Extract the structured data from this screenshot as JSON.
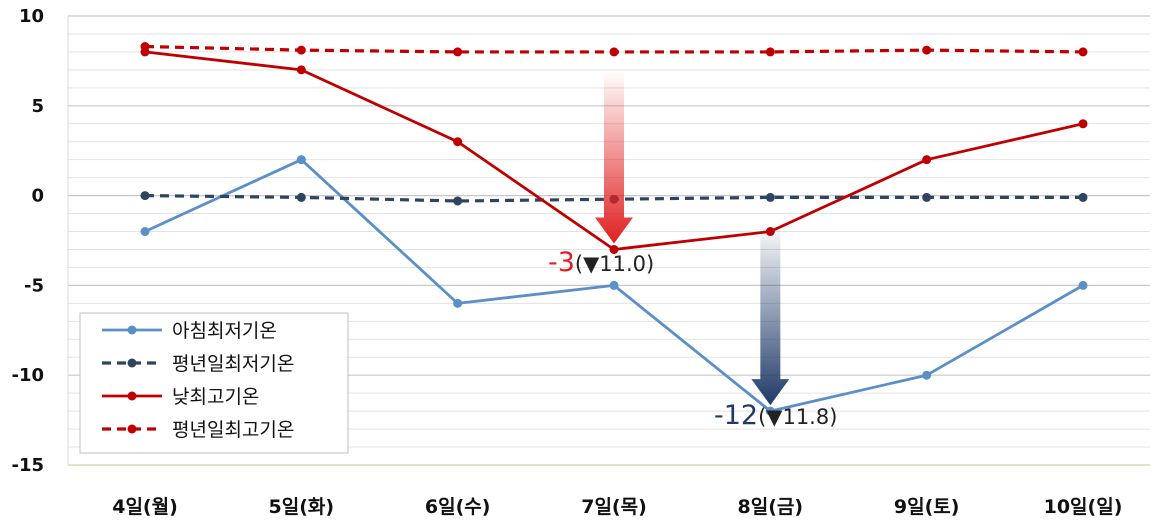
{
  "chart_data": {
    "type": "line",
    "title": "",
    "xlabel": "",
    "ylabel": "",
    "categories": [
      "4일(월)",
      "5일(화)",
      "6일(수)",
      "7일(목)",
      "8일(금)",
      "9일(토)",
      "10일(일)"
    ],
    "ylim": [
      -15,
      10
    ],
    "yticks": [
      10,
      5,
      0,
      -5,
      -10,
      -15
    ],
    "grid": true,
    "legend_position": "bottom-left",
    "series": [
      {
        "name": "아침최저기온",
        "color": "#5b8fc7",
        "dash": false,
        "values": [
          -2,
          2,
          -6,
          -5,
          -12,
          -10,
          -5
        ]
      },
      {
        "name": "평년일최저기온",
        "color": "#2f4461",
        "dash": true,
        "values": [
          0,
          -0.1,
          -0.3,
          -0.2,
          -0.1,
          -0.1,
          -0.1
        ]
      },
      {
        "name": "낮최고기온",
        "color": "#c00000",
        "dash": false,
        "values": [
          8,
          7,
          3,
          -3,
          -2,
          2,
          4
        ]
      },
      {
        "name": "평년일최고기온",
        "color": "#c00000",
        "dash": true,
        "values": [
          8.3,
          8.1,
          8,
          8,
          8,
          8.1,
          8
        ]
      }
    ],
    "annotations": [
      {
        "category": "7일(목)",
        "value": "-3",
        "change": "(▼11.0)",
        "color": "#e02020",
        "arrow_color": "#e02020"
      },
      {
        "category": "8일(금)",
        "value": "-12",
        "change": "(▼11.8)",
        "color": "#1f3a68",
        "arrow_color": "#1f3a68"
      }
    ]
  }
}
